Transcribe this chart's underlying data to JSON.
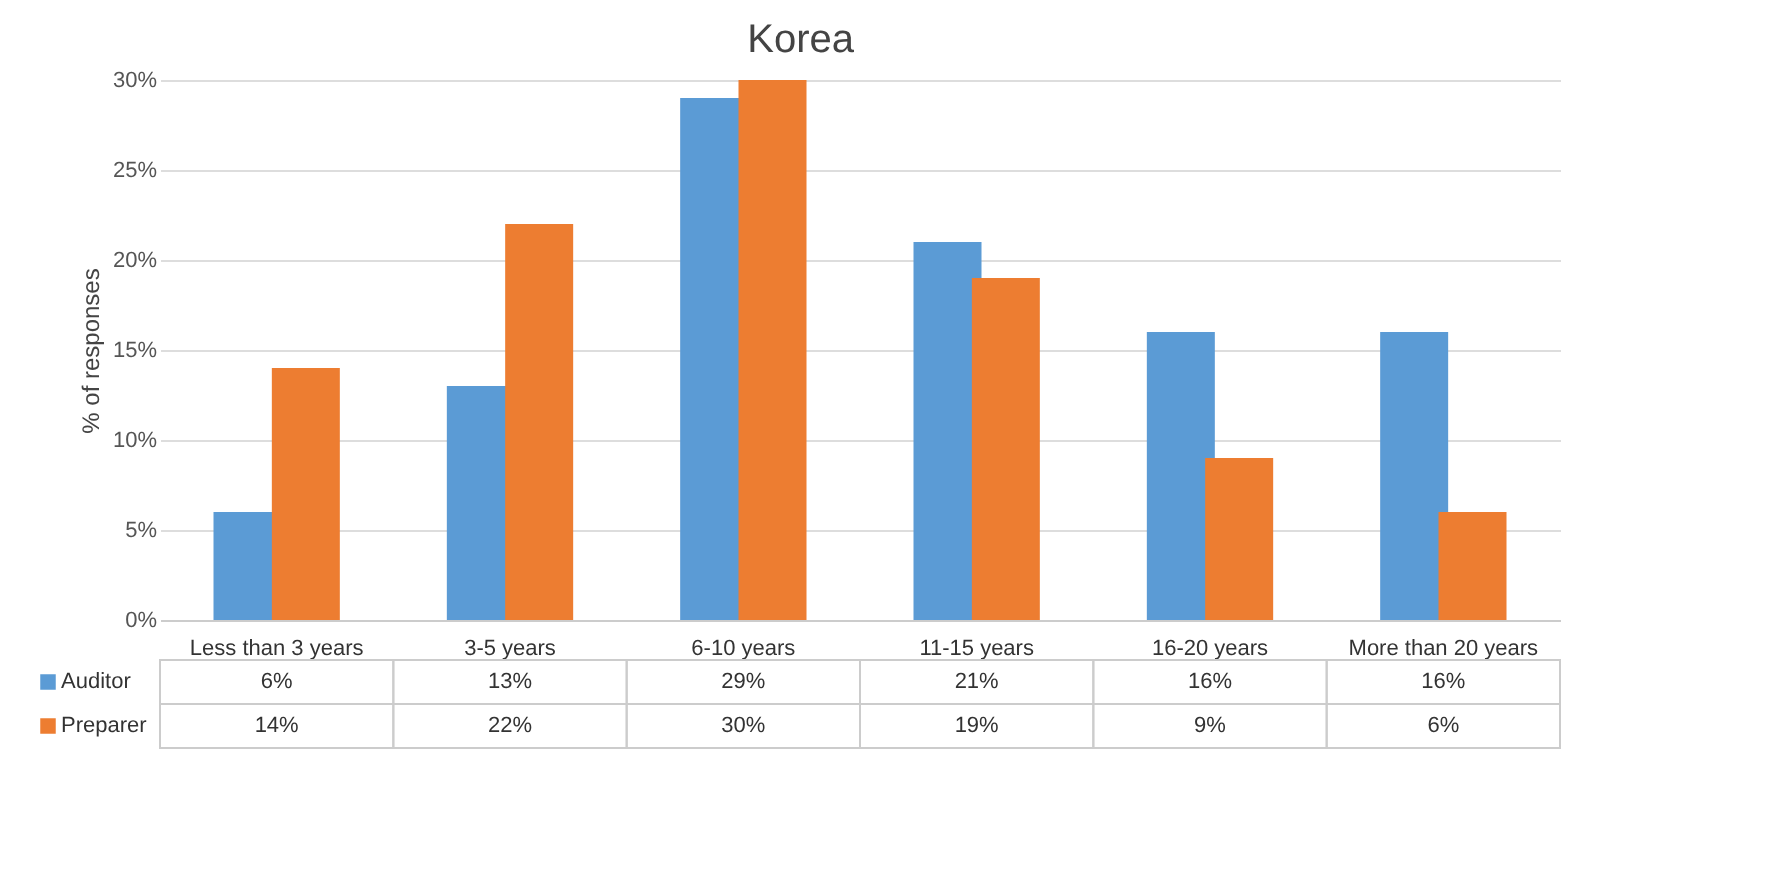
{
  "chart_data": {
    "type": "bar",
    "title": "Korea",
    "ylabel": "% of responses",
    "categories": [
      "Less than 3 years",
      "3-5 years",
      "6-10 years",
      "11-15 years",
      "16-20 years",
      "More than 20 years"
    ],
    "series": [
      {
        "name": "Auditor",
        "color": "#5b9bd5",
        "values": [
          6,
          13,
          29,
          21,
          16,
          16
        ],
        "value_labels": [
          "6%",
          "13%",
          "29%",
          "21%",
          "16%",
          "16%"
        ]
      },
      {
        "name": "Preparer",
        "color": "#ed7d31",
        "values": [
          14,
          22,
          30,
          19,
          9,
          6
        ],
        "value_labels": [
          "14%",
          "22%",
          "30%",
          "19%",
          "9%",
          "6%"
        ]
      }
    ],
    "ylim": [
      0,
      30
    ],
    "yticks": [
      {
        "value": 0,
        "label": "0%"
      },
      {
        "value": 5,
        "label": "5%"
      },
      {
        "value": 10,
        "label": "10%"
      },
      {
        "value": 15,
        "label": "15%"
      },
      {
        "value": 20,
        "label": "20%"
      },
      {
        "value": 25,
        "label": "25%"
      },
      {
        "value": 30,
        "label": "30%"
      }
    ],
    "grid": "y",
    "legend": "bottom"
  }
}
